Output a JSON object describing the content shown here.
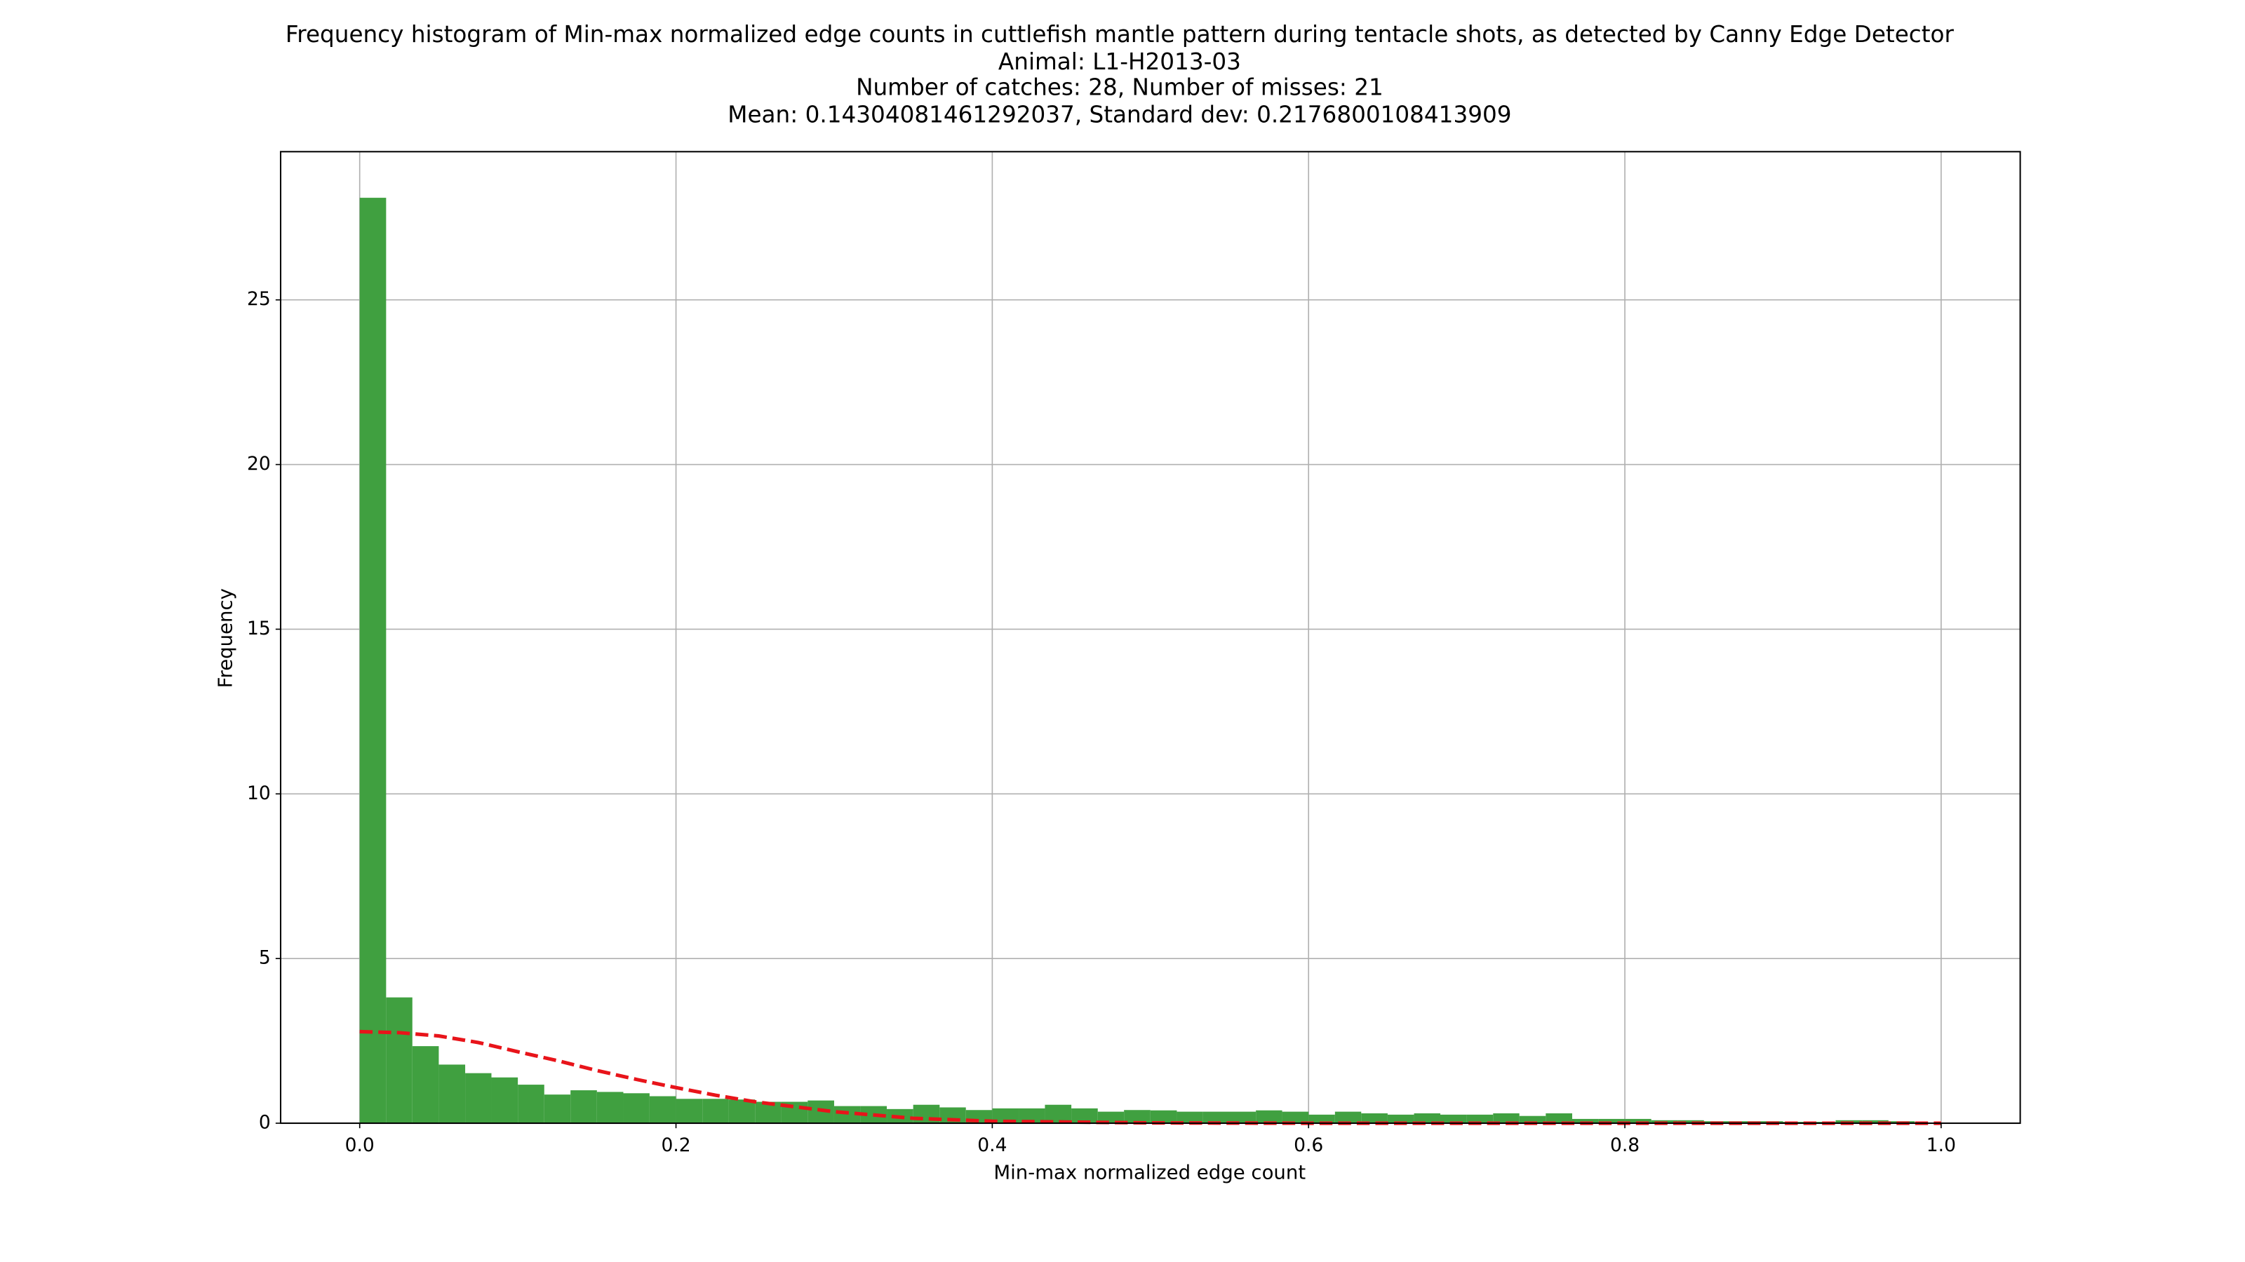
{
  "chart_data": {
    "type": "histogram",
    "title": [
      "Frequency histogram of Min-max normalized edge counts in cuttlefish mantle pattern during tentacle shots, as detected by Canny Edge Detector",
      "Animal: L1-H2013-03",
      "Number of catches: 28, Number of misses: 21",
      "Mean: 0.14304081461292037, Standard dev: 0.2176800108413909"
    ],
    "xlabel": "Min-max normalized edge count",
    "ylabel": "Frequency",
    "color": "#40a040",
    "bins": [
      0,
      0.0167,
      0.0333,
      0.05,
      0.0667,
      0.0833,
      0.1,
      0.1167,
      0.1333,
      0.15,
      0.1667,
      0.1833,
      0.2,
      0.2167,
      0.2333,
      0.25,
      0.2667,
      0.2833,
      0.3,
      0.3167,
      0.3333,
      0.35,
      0.3667,
      0.3833,
      0.4,
      0.4167,
      0.4333,
      0.45,
      0.4667,
      0.4833,
      0.5,
      0.5167,
      0.5333,
      0.55,
      0.5667,
      0.5833,
      0.6,
      0.6167,
      0.6333,
      0.65,
      0.6667,
      0.6833,
      0.7,
      0.7167,
      0.7333,
      0.75,
      0.7667,
      0.7833,
      0.8,
      0.8167,
      0.8333,
      0.85,
      0.8667,
      0.8833,
      0.9,
      0.9167,
      0.9333,
      0.95,
      0.9667,
      0.9833,
      1
    ],
    "values": [
      28.1,
      3.82,
      2.34,
      1.78,
      1.52,
      1.39,
      1.17,
      0.87,
      1.0,
      0.95,
      0.91,
      0.82,
      0.74,
      0.74,
      0.72,
      0.65,
      0.65,
      0.69,
      0.52,
      0.52,
      0.43,
      0.56,
      0.48,
      0.4,
      0.45,
      0.45,
      0.56,
      0.45,
      0.35,
      0.4,
      0.39,
      0.35,
      0.35,
      0.35,
      0.39,
      0.35,
      0.26,
      0.35,
      0.3,
      0.26,
      0.3,
      0.26,
      0.26,
      0.3,
      0.22,
      0.3,
      0.13,
      0.13,
      0.13,
      0.09,
      0.09,
      0.06,
      0.06,
      0.06,
      0.04,
      0.04,
      0.09,
      0.09,
      0.06,
      0.02
    ],
    "fit": {
      "color": "#e8141a",
      "dashed": true,
      "x": [
        0,
        0.025,
        0.05,
        0.075,
        0.1,
        0.125,
        0.15,
        0.175,
        0.2,
        0.225,
        0.25,
        0.3,
        0.35,
        0.4,
        0.5,
        0.6,
        0.8,
        1.0
      ],
      "values": [
        2.78,
        2.75,
        2.65,
        2.45,
        2.17,
        1.9,
        1.6,
        1.33,
        1.08,
        0.85,
        0.65,
        0.35,
        0.15,
        0.06,
        0.01,
        0,
        0,
        0
      ]
    },
    "xlim": [
      -0.05,
      1.05
    ],
    "ylim": [
      0,
      29.5
    ],
    "xticks": [
      {
        "value": 0,
        "label": "0.0"
      },
      {
        "value": 0.2,
        "label": "0.2"
      },
      {
        "value": 0.4,
        "label": "0.4"
      },
      {
        "value": 0.6,
        "label": "0.6"
      },
      {
        "value": 0.8,
        "label": "0.8"
      },
      {
        "value": 1,
        "label": "1.0"
      }
    ],
    "yticks": [
      0,
      5,
      10,
      15,
      20,
      25
    ],
    "grid": true
  }
}
